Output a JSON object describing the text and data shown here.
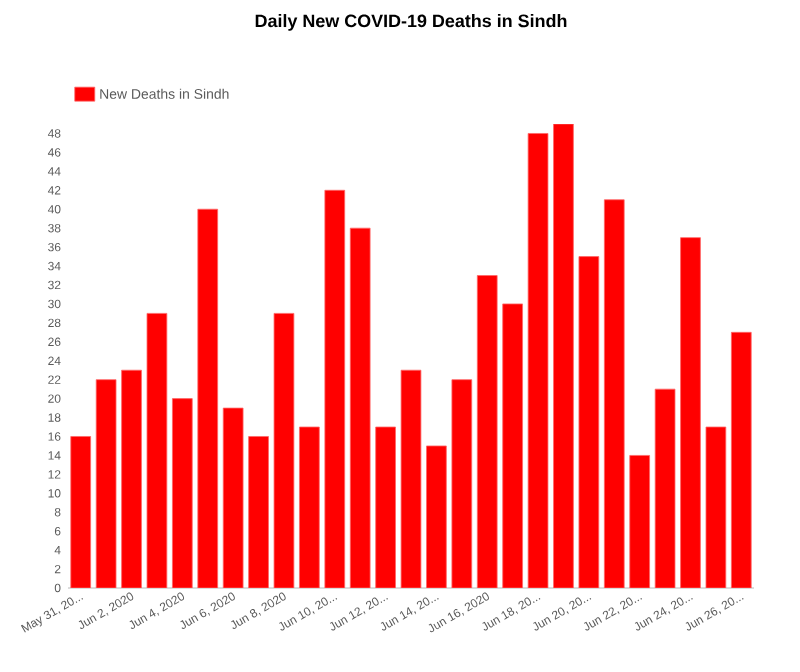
{
  "chart_data": {
    "type": "bar",
    "title": "Daily New COVID-19 Deaths in Sindh",
    "categories": [
      "May 31, 20...",
      null,
      "Jun 2, 2020",
      null,
      "Jun 4, 2020",
      null,
      "Jun 6, 2020",
      null,
      "Jun 8, 2020",
      null,
      "Jun 10, 20...",
      null,
      "Jun 12, 20...",
      null,
      "Jun 14, 20...",
      null,
      "Jun 16, 2020",
      null,
      "Jun 18, 20...",
      null,
      "Jun 20, 20...",
      null,
      "Jun 22, 20...",
      null,
      "Jun 24, 20...",
      null,
      "Jun 26, 20..."
    ],
    "series": [
      {
        "name": "New Deaths in Sindh",
        "color": "#ff0000",
        "values": [
          16,
          22,
          23,
          29,
          20,
          40,
          19,
          16,
          29,
          17,
          42,
          38,
          17,
          23,
          15,
          22,
          33,
          30,
          48,
          49,
          35,
          41,
          14,
          21,
          37,
          17,
          27
        ]
      }
    ],
    "ylim": [
      0,
      49
    ],
    "yticks": [
      0,
      2,
      4,
      6,
      8,
      10,
      12,
      14,
      16,
      18,
      20,
      22,
      24,
      26,
      28,
      30,
      32,
      34,
      36,
      38,
      40,
      42,
      44,
      46,
      48
    ],
    "legend": "top left"
  }
}
